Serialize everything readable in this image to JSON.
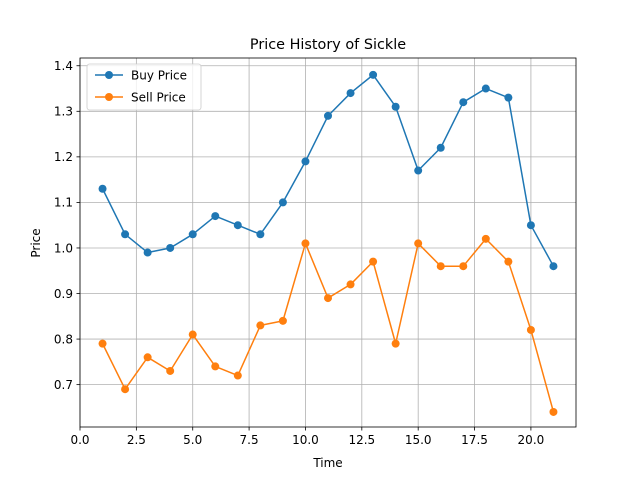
{
  "chart_data": {
    "type": "line",
    "title": "Price History of Sickle",
    "xlabel": "Time",
    "ylabel": "Price",
    "xlim": [
      0,
      22
    ],
    "ylim": [
      0.607,
      1.417
    ],
    "xticks": [
      0.0,
      2.5,
      5.0,
      7.5,
      10.0,
      12.5,
      15.0,
      17.5,
      20.0
    ],
    "xtick_labels": [
      "0.0",
      "2.5",
      "5.0",
      "7.5",
      "10.0",
      "12.5",
      "15.0",
      "17.5",
      "20.0"
    ],
    "yticks": [
      0.7,
      0.8,
      0.9,
      1.0,
      1.1,
      1.2,
      1.3,
      1.4
    ],
    "ytick_labels": [
      "0.7",
      "0.8",
      "0.9",
      "1.0",
      "1.1",
      "1.2",
      "1.3",
      "1.4"
    ],
    "grid": true,
    "legend_position": "top-left",
    "x": [
      1,
      2,
      3,
      4,
      5,
      6,
      7,
      8,
      9,
      10,
      11,
      12,
      13,
      14,
      15,
      16,
      17,
      18,
      19,
      20,
      21
    ],
    "series": [
      {
        "name": "Buy Price",
        "color": "#1f77b4",
        "values": [
          1.13,
          1.03,
          0.99,
          1.0,
          1.03,
          1.07,
          1.05,
          1.03,
          1.1,
          1.19,
          1.29,
          1.34,
          1.38,
          1.31,
          1.17,
          1.22,
          1.32,
          1.35,
          1.33,
          1.05,
          0.96
        ]
      },
      {
        "name": "Sell Price",
        "color": "#ff7f0e",
        "values": [
          0.79,
          0.69,
          0.76,
          0.73,
          0.81,
          0.74,
          0.72,
          0.83,
          0.84,
          1.01,
          0.89,
          0.92,
          0.97,
          0.79,
          1.01,
          0.96,
          0.96,
          1.02,
          0.97,
          0.82,
          0.64
        ]
      }
    ]
  }
}
